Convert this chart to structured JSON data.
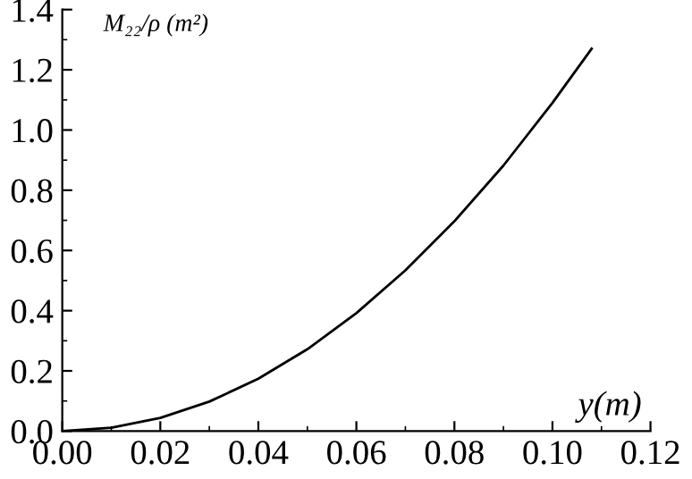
{
  "chart_data": {
    "type": "line",
    "xlabel": "y(m)",
    "ylabel": "M₂₂/ρ (m²)",
    "x": [
      0,
      0.01,
      0.02,
      0.03,
      0.04,
      0.05,
      0.06,
      0.07,
      0.08,
      0.09,
      0.1,
      0.108
    ],
    "series": [
      {
        "color": "#000000",
        "values": [
          0,
          0.011,
          0.044,
          0.098,
          0.174,
          0.272,
          0.392,
          0.534,
          0.697,
          0.882,
          1.09,
          1.27
        ]
      }
    ],
    "xlim": [
      0,
      0.12
    ],
    "xticks": [
      {
        "value": 0,
        "label": "0.00"
      },
      {
        "value": 0.02,
        "label": "0.02"
      },
      {
        "value": 0.04,
        "label": "0.04"
      },
      {
        "value": 0.06,
        "label": "0.06"
      },
      {
        "value": 0.08,
        "label": "0.08"
      },
      {
        "value": 0.1,
        "label": "0.10"
      },
      {
        "value": 0.12,
        "label": "0.12"
      }
    ],
    "ylim": [
      0,
      1.4
    ],
    "yticks": [
      {
        "value": 0,
        "label": "0.0"
      },
      {
        "value": 0.2,
        "label": "0.2"
      },
      {
        "value": 0.4,
        "label": "0.4"
      },
      {
        "value": 0.6,
        "label": "0.6"
      },
      {
        "value": 0.8,
        "label": "0.8"
      },
      {
        "value": 1.0,
        "label": "1.0"
      },
      {
        "value": 1.2,
        "label": "1.2"
      },
      {
        "value": 1.4,
        "label": "1.4"
      }
    ],
    "grid": false,
    "legend": false,
    "marker": "none",
    "line_style": "solid"
  }
}
